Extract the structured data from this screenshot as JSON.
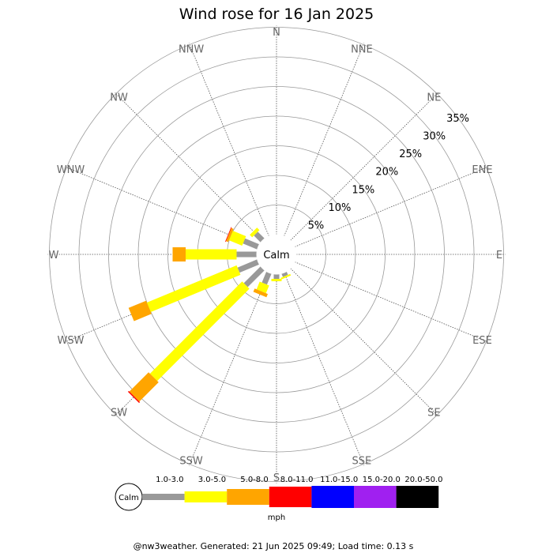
{
  "chart_data": {
    "type": "wind-rose",
    "title": "Wind rose for 16 Jan 2025",
    "directions": [
      "N",
      "NNE",
      "NE",
      "ENE",
      "E",
      "ESE",
      "SE",
      "SSE",
      "S",
      "SSW",
      "SW",
      "WSW",
      "W",
      "WNW",
      "NW",
      "NNW"
    ],
    "rings": [
      5,
      10,
      15,
      20,
      25,
      30,
      35
    ],
    "ring_labels": [
      "5%",
      "10%",
      "15%",
      "20%",
      "25%",
      "30%",
      "35%"
    ],
    "center_label": "Calm",
    "unit": "mph",
    "speed_bins": [
      {
        "label": "1.0-3.0",
        "color": "#999999"
      },
      {
        "label": "3.0-5.0",
        "color": "#ffff00"
      },
      {
        "label": "5.0-8.0",
        "color": "#ffa500"
      },
      {
        "label": "8.0-11.0",
        "color": "#ff0000"
      },
      {
        "label": "11.0-15.0",
        "color": "#0000ff"
      },
      {
        "label": "15.0-20.0",
        "color": "#a020f0"
      },
      {
        "label": "20.0-50.0",
        "color": "#000000"
      }
    ],
    "series": [
      {
        "direction": "SW",
        "values": [
          4.0,
          22.0,
          4.6,
          0.2
        ]
      },
      {
        "direction": "WSW",
        "values": [
          3.6,
          16.4,
          3.2,
          0
        ]
      },
      {
        "direction": "W",
        "values": [
          3.4,
          8.6,
          2.2,
          0
        ]
      },
      {
        "direction": "WNW",
        "values": [
          2.6,
          2.4,
          0.4,
          0.1
        ]
      },
      {
        "direction": "NW",
        "values": [
          1.6,
          0.6,
          0,
          0
        ]
      },
      {
        "direction": "SSW",
        "values": [
          2.0,
          1.4,
          0.6,
          0
        ]
      },
      {
        "direction": "S",
        "values": [
          0.8,
          0.4,
          0,
          0
        ]
      },
      {
        "direction": "SSE",
        "values": [
          0.6,
          0.3,
          0,
          0
        ]
      }
    ]
  },
  "footer": "@nw3weather. Generated: 21 Jun 2025 09:49; Load time: 0.13 s"
}
